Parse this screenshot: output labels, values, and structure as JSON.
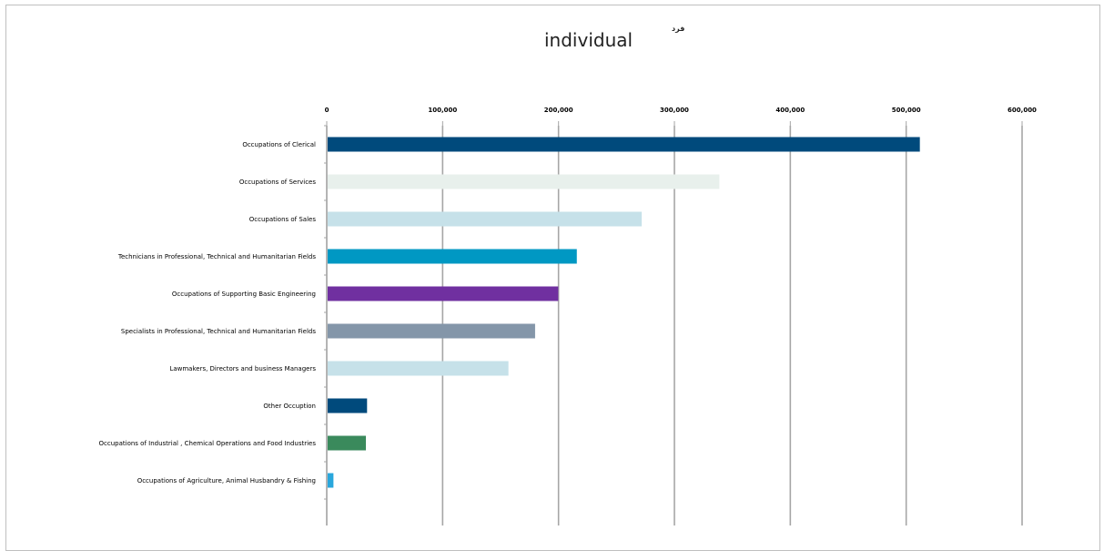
{
  "chart_data": {
    "type": "bar",
    "orientation": "horizontal",
    "title": "individual",
    "unit_label": "فرد",
    "xlim": [
      0,
      600000
    ],
    "x_ticks": [
      0,
      100000,
      200000,
      300000,
      400000,
      500000,
      600000
    ],
    "x_tick_labels": [
      "0",
      "100,000",
      "200,000",
      "300,000",
      "400,000",
      "500,000",
      "600,000"
    ],
    "grid": true,
    "legend": "none",
    "categories": [
      "Occupations of Clerical",
      "Occupations of Services",
      "Occupations of Sales",
      "Technicians in Professional, Technical and Humanitarian Fields",
      "Occupations of Supporting Basic Engineering",
      "Specialists in Professional, Technical and Humanitarian Fields",
      "Lawmakers, Directors and business Managers",
      "Other Occuption",
      "Occupations of Industrial , Chemical Operations and Food Industries",
      "Occupations of Agriculture, Animal Husbandry & Fishing"
    ],
    "values": [
      511000,
      338000,
      271000,
      215000,
      199000,
      179000,
      156000,
      34000,
      33000,
      5000
    ],
    "colors": [
      "#004a7c",
      "#e8f0ec",
      "#c6e1e9",
      "#0098c3",
      "#7030a0",
      "#8496a9",
      "#c6e1e9",
      "#004a7c",
      "#3a8a5c",
      "#2aa7dc"
    ]
  }
}
